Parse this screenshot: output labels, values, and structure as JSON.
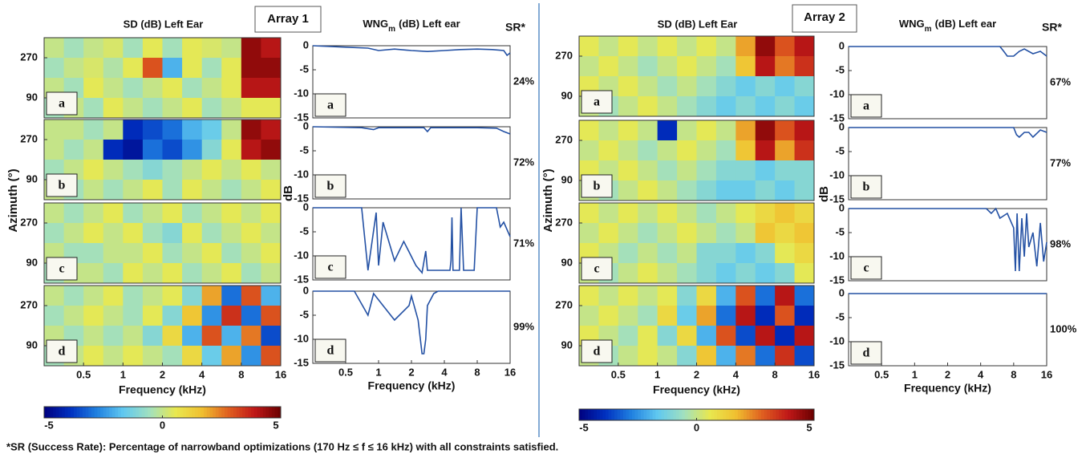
{
  "figure": {
    "arrays": [
      "Array 1",
      "Array 2"
    ],
    "footnote": "*SR (Success Rate): Percentage of narrowband optimizations (170 Hz  ≤ f ≤ 16 kHz) with all constraints satisfied."
  },
  "chart_data": [
    {
      "type": "heatmap",
      "title": "SD (dB) Left Ear",
      "panel_label": "a",
      "xlim": [
        0.25,
        16
      ],
      "ylim": [
        0,
        360
      ],
      "yticks": [
        90,
        270
      ],
      "zlim": [
        -5,
        5
      ],
      "z": [
        [
          0,
          -0.5,
          0,
          0.3,
          -0.5,
          0.5,
          -0.5,
          0.5,
          0.3,
          0,
          4.5,
          4
        ],
        [
          -0.5,
          0,
          0.3,
          -0.3,
          0.5,
          3,
          -2,
          0.5,
          -0.5,
          0.5,
          4.5,
          4.5
        ],
        [
          0,
          -0.5,
          0.5,
          0,
          -0.5,
          0,
          0.5,
          -0.5,
          0,
          0.5,
          4,
          4
        ],
        [
          -0.5,
          0,
          -0.5,
          0.5,
          0,
          -0.5,
          0,
          0.5,
          -0.5,
          0,
          0.5,
          0.5
        ]
      ]
    },
    {
      "type": "heatmap",
      "panel_label": "b",
      "ylabel": "Azimuth (°)",
      "xlim": [
        0.25,
        16
      ],
      "ylim": [
        0,
        360
      ],
      "yticks": [
        90,
        270
      ],
      "zlim": [
        -5,
        5
      ],
      "z": [
        [
          0,
          0,
          -0.5,
          0,
          -4,
          -3.5,
          -3,
          -2,
          -1.5,
          0,
          4.5,
          4
        ],
        [
          0,
          -0.5,
          0,
          -4,
          -4.5,
          -3,
          -3.5,
          -2.5,
          -1,
          0.5,
          4,
          4.5
        ],
        [
          -0.5,
          0,
          0.5,
          0,
          -0.5,
          -1,
          -0.5,
          0,
          0.5,
          0,
          0.5,
          0
        ],
        [
          0,
          -0.5,
          0,
          -0.5,
          0,
          0.5,
          -0.5,
          0.5,
          0,
          -0.5,
          0,
          0.5
        ]
      ]
    },
    {
      "type": "heatmap",
      "panel_label": "c",
      "xlim": [
        0.25,
        16
      ],
      "ylim": [
        0,
        360
      ],
      "yticks": [
        90,
        270
      ],
      "zlim": [
        -5,
        5
      ],
      "z": [
        [
          0,
          -0.5,
          0,
          0.5,
          -0.5,
          0,
          0.5,
          -0.5,
          0,
          0.5,
          0,
          0.5
        ],
        [
          -0.5,
          0,
          0.5,
          0,
          0.5,
          -0.5,
          -1,
          0.5,
          -0.5,
          0,
          0.5,
          0
        ],
        [
          0,
          -0.5,
          -0.5,
          0,
          0,
          0.5,
          -0.5,
          0,
          0.5,
          -0.5,
          0,
          0.5
        ],
        [
          -0.5,
          0,
          0,
          -0.5,
          0.5,
          0,
          0.5,
          -0.5,
          0,
          0.5,
          -0.5,
          0
        ]
      ]
    },
    {
      "type": "heatmap",
      "panel_label": "d",
      "xlabel": "Frequency (kHz)",
      "xlim": [
        0.25,
        16
      ],
      "xticks": [
        0.5,
        1,
        2,
        4,
        8,
        16
      ],
      "ylim": [
        0,
        360
      ],
      "yticks": [
        90,
        270
      ],
      "zlim": [
        -5,
        5
      ],
      "z": [
        [
          0,
          -0.5,
          0,
          0.5,
          -0.5,
          0,
          0.5,
          -1,
          2,
          -3,
          3,
          -2
        ],
        [
          -0.5,
          0,
          0.5,
          0,
          -0.5,
          0.5,
          -1,
          1.5,
          -2.5,
          3.5,
          -3,
          3
        ],
        [
          0,
          -0.5,
          0,
          -0.5,
          0,
          -1,
          1,
          -2,
          3,
          -2,
          2.5,
          -3.5
        ],
        [
          -0.5,
          0,
          0.5,
          0,
          0.5,
          0,
          -0.5,
          1,
          -1.5,
          2,
          -2.5,
          3
        ]
      ]
    },
    {
      "type": "line",
      "title": "WNG",
      "title_sub": "m",
      "title_rest": "(dB) Left ear",
      "sr_header": "SR*",
      "panel_label": "a",
      "annotation": "24%",
      "color": "#2451a4",
      "xlim": [
        0.25,
        16
      ],
      "ylim": [
        -15,
        0
      ],
      "yticks": [
        0,
        -5,
        -10,
        -15
      ],
      "x": [
        0.25,
        0.5,
        0.8,
        1,
        1.4,
        2,
        2.8,
        4,
        5.6,
        8,
        11,
        14,
        15,
        16
      ],
      "values": [
        0,
        -0.3,
        -0.5,
        -1,
        -0.7,
        -1,
        -1.2,
        -1,
        -0.8,
        -0.7,
        -0.8,
        -1,
        -2,
        -1.5
      ]
    },
    {
      "type": "line",
      "panel_label": "b",
      "ylabel": "dB",
      "annotation": "72%",
      "color": "#2451a4",
      "xlim": [
        0.25,
        16
      ],
      "ylim": [
        -15,
        0
      ],
      "yticks": [
        0,
        -5,
        -10,
        -15
      ],
      "x": [
        0.25,
        0.7,
        0.9,
        1,
        2,
        2.6,
        2.8,
        3,
        4,
        8,
        12,
        14,
        16
      ],
      "values": [
        0,
        -0.2,
        -0.6,
        -0.2,
        -0.2,
        -0.2,
        -1,
        -0.2,
        -0.2,
        -0.2,
        -0.3,
        -1,
        -1.5
      ]
    },
    {
      "type": "line",
      "panel_label": "c",
      "annotation": "71%",
      "color": "#2451a4",
      "xlim": [
        0.25,
        16
      ],
      "ylim": [
        -15,
        0
      ],
      "yticks": [
        0,
        -5,
        -10,
        -15
      ],
      "x": [
        0.25,
        0.7,
        0.8,
        0.95,
        1,
        1.1,
        1.4,
        1.7,
        2.2,
        2.5,
        2.7,
        2.8,
        4.5,
        4.6,
        4.7,
        4.8,
        5.5,
        5.7,
        6,
        7.5,
        8,
        12,
        13,
        14,
        16
      ],
      "values": [
        0,
        0,
        -13,
        -1,
        -12,
        -3,
        -11,
        -7,
        -12,
        -13.5,
        -9,
        -13,
        -13,
        -11,
        -2,
        -13,
        -13,
        0,
        -13,
        -13,
        0,
        0,
        -4,
        -3,
        -6
      ]
    },
    {
      "type": "line",
      "panel_label": "d",
      "annotation": "99%",
      "xlabel": "Frequency (kHz)",
      "color": "#2451a4",
      "xlim": [
        0.25,
        16
      ],
      "xticks": [
        0.5,
        1,
        2,
        4,
        8,
        16
      ],
      "ylim": [
        -15,
        0
      ],
      "yticks": [
        0,
        -5,
        -10,
        -15
      ],
      "x": [
        0.25,
        0.6,
        0.8,
        0.9,
        1.1,
        1.4,
        1.9,
        2,
        2.3,
        2.5,
        2.6,
        2.7,
        2.8,
        3.2,
        3.5,
        16
      ],
      "values": [
        0,
        0,
        -5,
        -0.5,
        -3,
        -6,
        -3,
        -1,
        -6,
        -13,
        -13,
        -10,
        -3,
        -0.5,
        0,
        0
      ]
    },
    {
      "type": "colorbar",
      "zlim": [
        -5,
        5
      ],
      "ticks": [
        -5,
        0,
        5
      ],
      "colormap": [
        "#00007f",
        "#0030c0",
        "#2080e0",
        "#60c8f0",
        "#a0e0c0",
        "#e8e850",
        "#f0c030",
        "#e06020",
        "#c01818",
        "#6a0000"
      ]
    },
    {
      "type": "heatmap",
      "title": "SD (dB) Left Ear",
      "panel_label": "a",
      "xlim": [
        0.25,
        16
      ],
      "ylim": [
        0,
        360
      ],
      "yticks": [
        90,
        270
      ],
      "zlim": [
        -5,
        5
      ],
      "z": [
        [
          0.5,
          0,
          0.5,
          0,
          0.5,
          0,
          0.5,
          0,
          2,
          4.5,
          3,
          4
        ],
        [
          0,
          0.5,
          0,
          -0.5,
          0,
          0.5,
          0,
          -0.5,
          1.5,
          4,
          2.5,
          3.5
        ],
        [
          0.5,
          0,
          0.5,
          0,
          -0.5,
          0,
          -0.5,
          -1,
          -1.5,
          -1,
          -1.5,
          -1
        ],
        [
          0,
          -0.5,
          0,
          0.5,
          0,
          -0.5,
          -1,
          -1.5,
          -1,
          -1.5,
          -1,
          -1.5
        ]
      ]
    },
    {
      "type": "heatmap",
      "panel_label": "b",
      "ylabel": "Azimuth (°)",
      "xlim": [
        0.25,
        16
      ],
      "ylim": [
        0,
        360
      ],
      "yticks": [
        90,
        270
      ],
      "zlim": [
        -5,
        5
      ],
      "z": [
        [
          0.5,
          0,
          0.5,
          0,
          -4,
          0,
          0.5,
          0,
          2,
          4.5,
          3,
          4
        ],
        [
          0,
          0.5,
          0,
          -0.5,
          0,
          0.5,
          0,
          -0.5,
          1.5,
          4,
          2,
          3.5
        ],
        [
          0.5,
          0,
          0.5,
          0,
          -0.5,
          0,
          -0.5,
          -1,
          -1,
          -1.5,
          -1,
          -1
        ],
        [
          0,
          -0.5,
          0,
          0.5,
          0,
          -0.5,
          -1,
          -1.5,
          -1.5,
          -1,
          -1.5,
          -1
        ]
      ]
    },
    {
      "type": "heatmap",
      "panel_label": "c",
      "xlim": [
        0.25,
        16
      ],
      "ylim": [
        0,
        360
      ],
      "yticks": [
        90,
        270
      ],
      "zlim": [
        -5,
        5
      ],
      "z": [
        [
          0.5,
          0,
          0.5,
          0,
          0.5,
          0,
          -0.5,
          0,
          0.5,
          1,
          1.5,
          1
        ],
        [
          0,
          0.5,
          0,
          -0.5,
          0,
          0.5,
          0,
          -0.5,
          0,
          1.5,
          1,
          1.5
        ],
        [
          0.5,
          0,
          -0.5,
          0,
          -0.5,
          0,
          -1,
          -1,
          -1.5,
          -1,
          0.5,
          1
        ],
        [
          0,
          -0.5,
          0,
          0.5,
          0,
          -0.5,
          -1,
          -1.5,
          -1,
          -1.5,
          -1,
          0.5
        ]
      ]
    },
    {
      "type": "heatmap",
      "panel_label": "d",
      "xlabel": "Frequency (kHz)",
      "xlim": [
        0.25,
        16
      ],
      "xticks": [
        0.5,
        1,
        2,
        4,
        8,
        16
      ],
      "ylim": [
        0,
        360
      ],
      "yticks": [
        90,
        270
      ],
      "zlim": [
        -5,
        5
      ],
      "z": [
        [
          0.5,
          0,
          0.5,
          0,
          0.5,
          -1,
          1,
          -2,
          3,
          -3,
          4,
          -3
        ],
        [
          0,
          0.5,
          0,
          -0.5,
          1,
          -1.5,
          2,
          -3,
          4,
          -4,
          3,
          -4
        ],
        [
          0.5,
          0,
          -0.5,
          0.5,
          -1,
          1,
          -2,
          3,
          -3.5,
          4,
          -4,
          4
        ],
        [
          0,
          -0.5,
          0,
          0.5,
          0,
          -1,
          1.5,
          -2,
          2.5,
          -3,
          3.5,
          -3.5
        ]
      ]
    },
    {
      "type": "line",
      "title": "WNG",
      "title_sub": "m",
      "title_rest": "(dB) Left ear",
      "sr_header": "SR*",
      "panel_label": "a",
      "annotation": "67%",
      "color": "#2451a4",
      "xlim": [
        0.25,
        16
      ],
      "ylim": [
        -15,
        0
      ],
      "yticks": [
        0,
        -5,
        -10,
        -15
      ],
      "x": [
        0.25,
        6,
        6.5,
        7,
        8,
        9,
        10,
        12,
        14,
        16
      ],
      "values": [
        0,
        0,
        -1,
        -2,
        -2,
        -1,
        -0.5,
        -1.5,
        -1,
        -2
      ]
    },
    {
      "type": "line",
      "panel_label": "b",
      "ylabel": "dB",
      "annotation": "77%",
      "color": "#2451a4",
      "xlim": [
        0.25,
        16
      ],
      "ylim": [
        -15,
        0
      ],
      "yticks": [
        0,
        -5,
        -10,
        -15
      ],
      "x": [
        0.25,
        8,
        8.5,
        9,
        10,
        11,
        12,
        14,
        16
      ],
      "values": [
        0,
        0,
        -1.5,
        -2,
        -1,
        -1,
        -2,
        -0.5,
        -1
      ]
    },
    {
      "type": "line",
      "panel_label": "c",
      "annotation": "98%",
      "color": "#2451a4",
      "xlim": [
        0.25,
        16
      ],
      "ylim": [
        -15,
        0
      ],
      "yticks": [
        0,
        -5,
        -10,
        -15
      ],
      "x": [
        0.25,
        4.5,
        5,
        5.5,
        6,
        7,
        8,
        8.3,
        8.6,
        9,
        9.5,
        10,
        10.5,
        11,
        12,
        13,
        14,
        15,
        16
      ],
      "values": [
        0,
        0,
        -1,
        0,
        -2,
        -1,
        -4,
        -13,
        -1,
        -13,
        -2,
        -10,
        -1,
        -8,
        -5,
        -12,
        -3,
        -11,
        -7
      ]
    },
    {
      "type": "line",
      "panel_label": "d",
      "annotation": "100%",
      "xlabel": "Frequency (kHz)",
      "color": "#2451a4",
      "xlim": [
        0.25,
        16
      ],
      "xticks": [
        0.5,
        1,
        2,
        4,
        8,
        16
      ],
      "ylim": [
        -15,
        0
      ],
      "yticks": [
        0,
        -5,
        -10,
        -15
      ],
      "x": [
        0.25,
        16
      ],
      "values": [
        0,
        0
      ]
    },
    {
      "type": "colorbar",
      "zlim": [
        -5,
        5
      ],
      "ticks": [
        -5,
        0,
        5
      ],
      "colormap": [
        "#00007f",
        "#0030c0",
        "#2080e0",
        "#60c8f0",
        "#a0e0c0",
        "#e8e850",
        "#f0c030",
        "#e06020",
        "#c01818",
        "#6a0000"
      ]
    }
  ]
}
